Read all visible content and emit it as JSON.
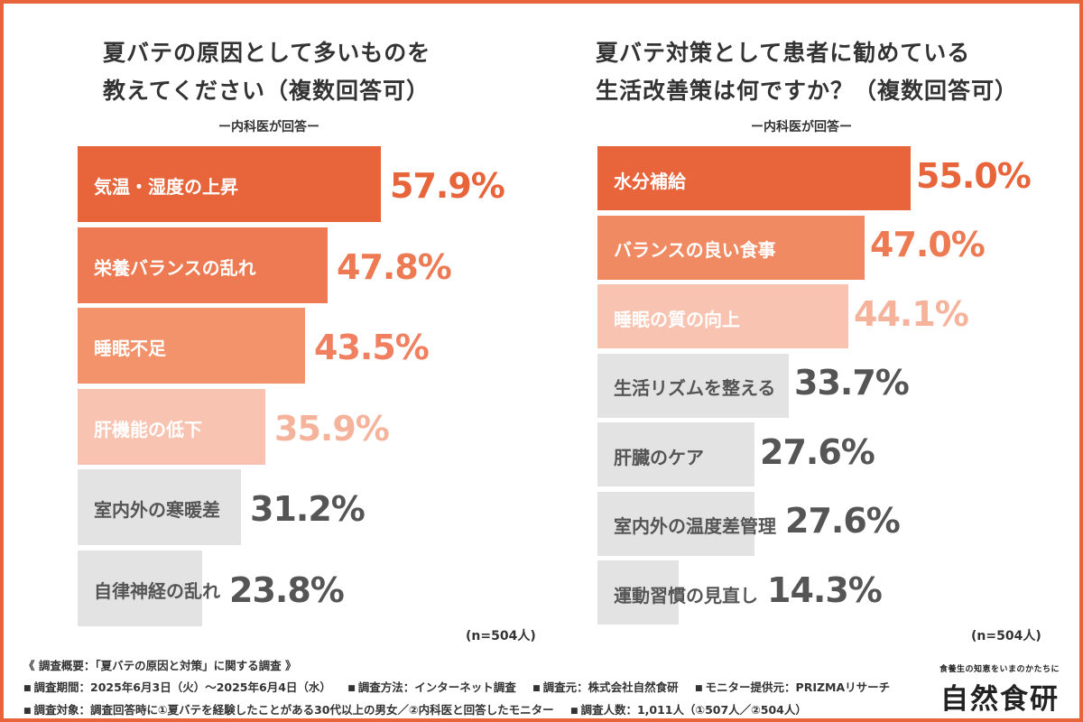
{
  "chart_data": [
    {
      "type": "bar",
      "orientation": "horizontal",
      "title_lines": [
        "夏バテの原因として多いものを",
        "教えてください（複数回答可）"
      ],
      "subtitle": "ー内科医が回答ー",
      "categories": [
        "気温・湿度の上昇",
        "栄養バランスの乱れ",
        "睡眠不足",
        "肝機能の低下",
        "室内外の寒暖差",
        "自律神経の乱れ"
      ],
      "values": [
        57.9,
        47.8,
        43.5,
        35.9,
        31.2,
        23.8
      ],
      "value_labels": [
        "57.9%",
        "47.8%",
        "43.5%",
        "35.9%",
        "31.2%",
        "23.8%"
      ],
      "bar_colors": [
        "#e8643a",
        "#ed7a52",
        "#f3936b",
        "#f8c3b0",
        "#e3e3e3",
        "#e3e3e3"
      ],
      "label_colors": [
        "#ffffff",
        "#ffffff",
        "#ffffff",
        "#ffffff",
        "#555555",
        "#555555"
      ],
      "value_colors": [
        "#e8643a",
        "#ed7a52",
        "#f08060",
        "#f6b39c",
        "#555555",
        "#555555"
      ],
      "n_label": "(n=504人)",
      "xlim": [
        0,
        100
      ]
    },
    {
      "type": "bar",
      "orientation": "horizontal",
      "title_lines": [
        "夏バテ対策として患者に勧めている",
        "生活改善策は何ですか？（複数回答可）"
      ],
      "subtitle": "ー内科医が回答ー",
      "categories": [
        "水分補給",
        "バランスの良い食事",
        "睡眠の質の向上",
        "生活リズムを整える",
        "肝臓のケア",
        "室内外の温度差管理",
        "運動習慣の見直し"
      ],
      "values": [
        55.0,
        47.0,
        44.1,
        33.7,
        27.6,
        27.6,
        14.3
      ],
      "value_labels": [
        "55.0%",
        "47.0%",
        "44.1%",
        "33.7%",
        "27.6%",
        "27.6%",
        "14.3%"
      ],
      "bar_colors": [
        "#e8643a",
        "#f08a62",
        "#f8c3b0",
        "#e3e3e3",
        "#e3e3e3",
        "#e3e3e3",
        "#e3e3e3"
      ],
      "label_colors": [
        "#ffffff",
        "#ffffff",
        "#ffffff",
        "#555555",
        "#555555",
        "#555555",
        "#555555"
      ],
      "value_colors": [
        "#e8643a",
        "#ed7a52",
        "#f6b39c",
        "#555555",
        "#555555",
        "#555555",
        "#555555"
      ],
      "n_label": "(n=504人)",
      "xlim": [
        0,
        100
      ]
    }
  ],
  "footer": {
    "heading": "《 調査概要：「夏バテの原因と対策」に関する調査 》",
    "line2": [
      "調査期間：2025年6月3日（火）～2025年6月4日（水）",
      "調査方法：インターネット調査",
      "調査元：株式会社自然食研",
      "モニター提供元：PRIZMAリサーチ"
    ],
    "line3": [
      "調査対象：調査回答時に①夏バテを経験したことがある30代以上の男女／②内科医と回答したモニター",
      "調査人数：1,011人（①507人／②504人）"
    ]
  },
  "brand": {
    "tagline": "食養生の知恵をいまのかたちに",
    "name": "自然食研"
  },
  "colors": {
    "accent": "#e8643a",
    "border": "#e8643a"
  }
}
